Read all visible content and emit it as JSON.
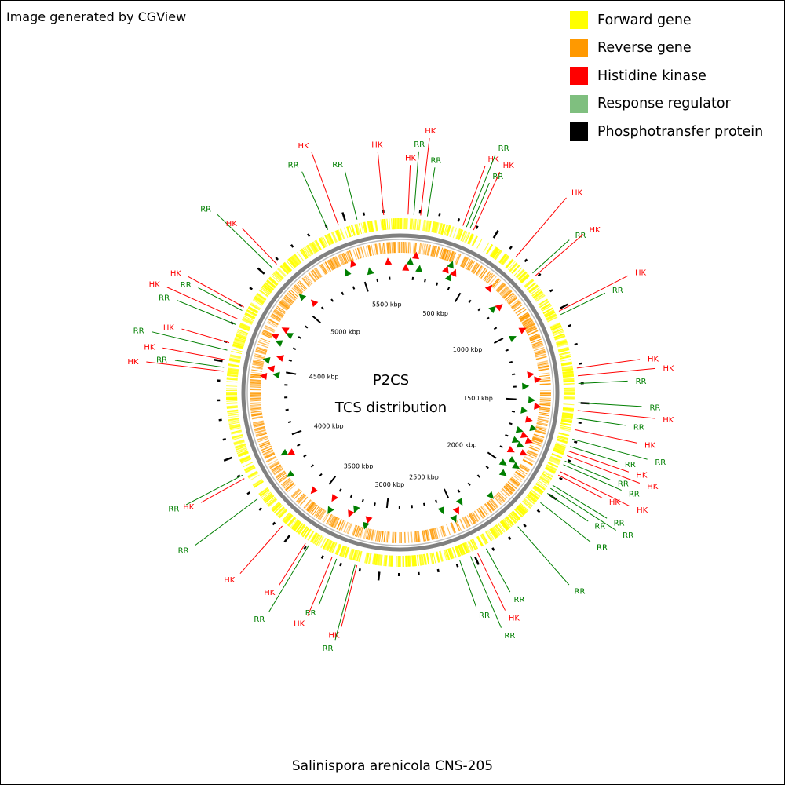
{
  "credit": "Image generated by CGView",
  "title_line1": "P2CS",
  "title_line2": "TCS distribution",
  "organism": "Salinispora arenicola CNS-205",
  "legend": [
    {
      "label": "Forward gene",
      "color": "#ffff00"
    },
    {
      "label": "Reverse gene",
      "color": "#ff9900"
    },
    {
      "label": "Histidine kinase",
      "color": "#ff0000"
    },
    {
      "label": "Response regulator",
      "color": "#7fbf7f"
    },
    {
      "label": "Phosphotransfer protein",
      "color": "#000000"
    }
  ],
  "colors": {
    "forward": "#ffff00",
    "reverse": "#ff9900",
    "hk": "#ff0000",
    "rr": "#007f00",
    "backbone": "#808080"
  },
  "genome_kbp": 5786,
  "scale_labels": [
    "500 kbp",
    "1000 kbp",
    "1500 kbp",
    "2000 kbp",
    "2500 kbp",
    "3000 kbp",
    "3500 kbp",
    "4000 kbp",
    "4500 kbp",
    "5000 kbp",
    "5500 kbp"
  ],
  "features": [
    {
      "type": "HK",
      "kbp": 40,
      "label": "HK"
    },
    {
      "type": "RR",
      "kbp": 70,
      "label": "RR"
    },
    {
      "type": "HK",
      "kbp": 105,
      "label": "HK"
    },
    {
      "type": "RR",
      "kbp": 140,
      "label": "RR"
    },
    {
      "type": "HK",
      "kbp": 330,
      "label": "HK"
    },
    {
      "type": "RR",
      "kbp": 350,
      "label": "RR"
    },
    {
      "type": "RR",
      "kbp": 370,
      "label": "RR"
    },
    {
      "type": "HK",
      "kbp": 390,
      "label": "HK"
    },
    {
      "type": "HK",
      "kbp": 650,
      "label": "HK"
    },
    {
      "type": "RR",
      "kbp": 770,
      "label": "RR"
    },
    {
      "type": "HK",
      "kbp": 790,
      "label": "HK"
    },
    {
      "type": "HK",
      "kbp": 1010,
      "label": "HK"
    },
    {
      "type": "RR",
      "kbp": 1030,
      "label": "RR"
    },
    {
      "type": "HK",
      "kbp": 1320,
      "label": "HK"
    },
    {
      "type": "HK",
      "kbp": 1360,
      "label": "HK"
    },
    {
      "type": "RR",
      "kbp": 1400,
      "label": "RR"
    },
    {
      "type": "RR",
      "kbp": 1500,
      "label": "RR"
    },
    {
      "type": "HK",
      "kbp": 1540,
      "label": "HK"
    },
    {
      "type": "RR",
      "kbp": 1580,
      "label": "RR"
    },
    {
      "type": "HK",
      "kbp": 1640,
      "label": "HK"
    },
    {
      "type": "RR",
      "kbp": 1690,
      "label": "RR"
    },
    {
      "type": "RR",
      "kbp": 1730,
      "label": "RR"
    },
    {
      "type": "HK",
      "kbp": 1755,
      "label": "HK"
    },
    {
      "type": "HK",
      "kbp": 1780,
      "label": "HK"
    },
    {
      "type": "RR",
      "kbp": 1810,
      "label": "RR"
    },
    {
      "type": "RR",
      "kbp": 1830,
      "label": "RR"
    },
    {
      "type": "HK",
      "kbp": 1870,
      "label": "HK"
    },
    {
      "type": "HK",
      "kbp": 1890,
      "label": "HK"
    },
    {
      "type": "RR",
      "kbp": 1950,
      "label": "RR"
    },
    {
      "type": "RR",
      "kbp": 1970,
      "label": "RR"
    },
    {
      "type": "RR",
      "kbp": 2000,
      "label": "RR"
    },
    {
      "type": "RR",
      "kbp": 2060,
      "label": "RR"
    },
    {
      "type": "RR",
      "kbp": 2230,
      "label": "RR"
    },
    {
      "type": "RR",
      "kbp": 2430,
      "label": "RR"
    },
    {
      "type": "HK",
      "kbp": 2480,
      "label": "HK"
    },
    {
      "type": "RR",
      "kbp": 2520,
      "label": "RR"
    },
    {
      "type": "RR",
      "kbp": 2580,
      "label": "RR"
    },
    {
      "type": "HK",
      "kbp": 3120,
      "label": "HK"
    },
    {
      "type": "RR",
      "kbp": 3130,
      "label": "RR"
    },
    {
      "type": "RR",
      "kbp": 3230,
      "label": "RR"
    },
    {
      "type": "HK",
      "kbp": 3255,
      "label": "HK"
    },
    {
      "type": "RR",
      "kbp": 3390,
      "label": "RR"
    },
    {
      "type": "HK",
      "kbp": 3410,
      "label": "HK"
    },
    {
      "type": "HK",
      "kbp": 3560,
      "label": "HK"
    },
    {
      "type": "RR",
      "kbp": 3750,
      "label": "RR"
    },
    {
      "type": "HK",
      "kbp": 3875,
      "label": "HK"
    },
    {
      "type": "RR",
      "kbp": 3895,
      "label": "RR"
    },
    {
      "type": "HK",
      "kbp": 4450,
      "label": "HK"
    },
    {
      "type": "RR",
      "kbp": 4470,
      "label": "RR"
    },
    {
      "type": "HK",
      "kbp": 4510,
      "label": "HK"
    },
    {
      "type": "RR",
      "kbp": 4560,
      "label": "RR"
    },
    {
      "type": "HK",
      "kbp": 4600,
      "label": "HK"
    },
    {
      "type": "RR",
      "kbp": 4700,
      "label": "RR"
    },
    {
      "type": "HK",
      "kbp": 4730,
      "label": "HK"
    },
    {
      "type": "RR",
      "kbp": 4780,
      "label": "RR"
    },
    {
      "type": "HK",
      "kbp": 4800,
      "label": "HK"
    },
    {
      "type": "RR",
      "kbp": 5050,
      "label": "RR"
    },
    {
      "type": "HK",
      "kbp": 5080,
      "label": "HK"
    },
    {
      "type": "RR",
      "kbp": 5400,
      "label": "RR"
    },
    {
      "type": "HK",
      "kbp": 5460,
      "label": "HK"
    },
    {
      "type": "RR",
      "kbp": 5560,
      "label": "RR"
    },
    {
      "type": "HK",
      "kbp": 5700,
      "label": "HK"
    }
  ]
}
